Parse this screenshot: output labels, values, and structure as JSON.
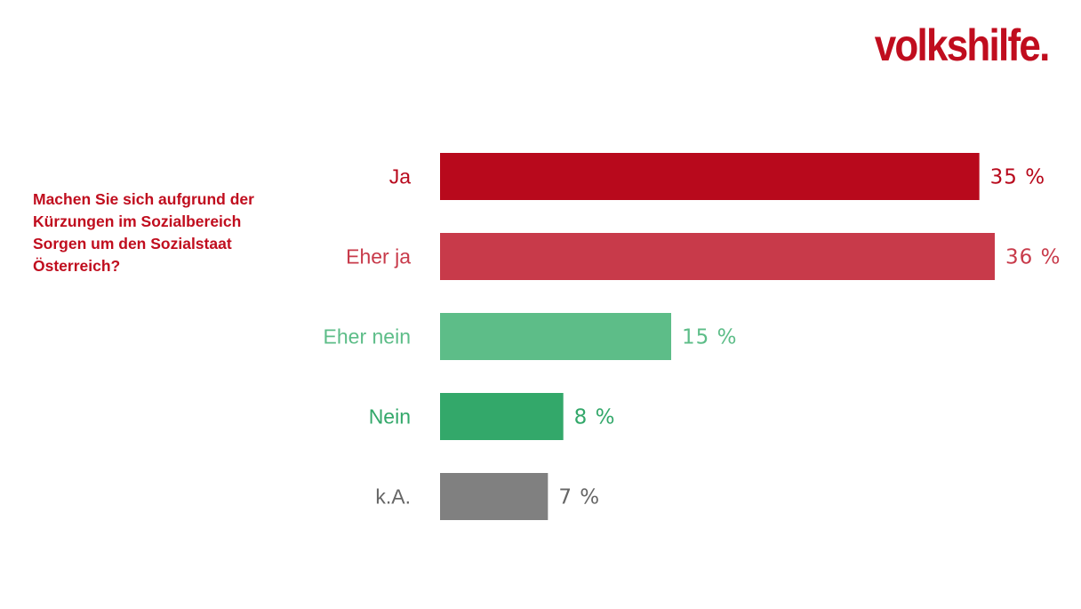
{
  "brand": {
    "logo_text": "volkshilfe.",
    "color": "#c00d1e"
  },
  "question": {
    "text": "Machen Sie sich aufgrund der Kürzungen im Sozialbereich Sorgen um den Sozialstaat Österreich?",
    "color": "#c00d1e"
  },
  "chart_data": {
    "type": "bar",
    "orientation": "horizontal",
    "categories": [
      "Ja",
      "Eher ja",
      "Eher nein",
      "Nein",
      "k.A."
    ],
    "values": [
      35,
      36,
      15,
      8,
      7
    ],
    "value_labels": [
      "35 %",
      "36 %",
      "15 %",
      "8 %",
      "7 %"
    ],
    "colors": [
      "#b8091c",
      "#c83a4a",
      "#5dbd88",
      "#33a86a",
      "#808080"
    ],
    "label_colors": [
      "#b8091c",
      "#c83a4a",
      "#5dbd88",
      "#33a86a",
      "#666666"
    ],
    "unit": "%",
    "xlim": [
      0,
      36
    ],
    "grid": false,
    "legend": "none"
  }
}
